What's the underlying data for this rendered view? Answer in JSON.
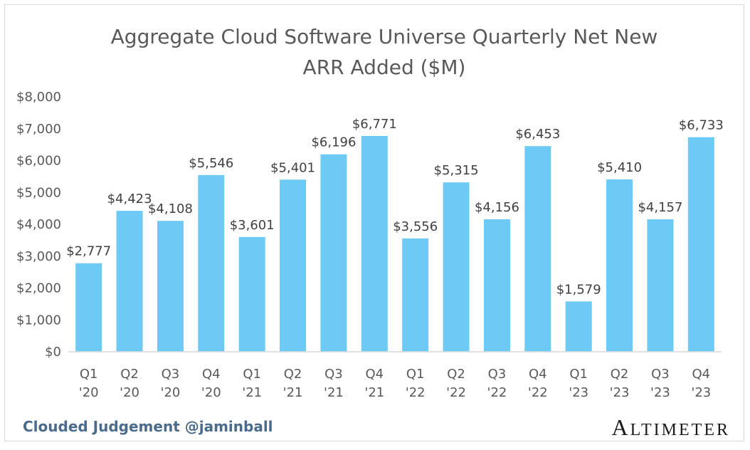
{
  "chart_data": {
    "type": "bar",
    "title": "Aggregate Cloud Software Universe Quarterly Net New ARR Added ($M)",
    "title_lines": [
      "Aggregate Cloud Software Universe Quarterly Net New",
      "ARR Added ($M)"
    ],
    "categories": [
      [
        "Q1",
        "'20"
      ],
      [
        "Q2",
        "'20"
      ],
      [
        "Q3",
        "'20"
      ],
      [
        "Q4",
        "'20"
      ],
      [
        "Q1",
        "'21"
      ],
      [
        "Q2",
        "'21"
      ],
      [
        "Q3",
        "'21"
      ],
      [
        "Q4",
        "'21"
      ],
      [
        "Q1",
        "'22"
      ],
      [
        "Q2",
        "'22"
      ],
      [
        "Q3",
        "'22"
      ],
      [
        "Q4",
        "'22"
      ],
      [
        "Q1",
        "'23"
      ],
      [
        "Q2",
        "'23"
      ],
      [
        "Q3",
        "'23"
      ],
      [
        "Q4",
        "'23"
      ]
    ],
    "values": [
      2777,
      4423,
      4108,
      5546,
      3601,
      5401,
      6196,
      6771,
      3556,
      5315,
      4156,
      6453,
      1579,
      5410,
      4157,
      6733
    ],
    "data_labels": [
      "$2,777",
      "$4,423",
      "$4,108",
      "$5,546",
      "$3,601",
      "$5,401",
      "$6,196",
      "$6,771",
      "$3,556",
      "$5,315",
      "$4,156",
      "$6,453",
      "$1,579",
      "$5,410",
      "$4,157",
      "$6,733"
    ],
    "ylim": [
      0,
      8000
    ],
    "yticks": [
      0,
      1000,
      2000,
      3000,
      4000,
      5000,
      6000,
      7000,
      8000
    ],
    "ytick_labels": [
      "$0",
      "$1,000",
      "$2,000",
      "$3,000",
      "$4,000",
      "$5,000",
      "$6,000",
      "$7,000",
      "$8,000"
    ],
    "xlabel": "",
    "ylabel": "",
    "grid": false,
    "bar_color": "#6ccaf5"
  },
  "footer": {
    "credit": "Clouded Judgement @jaminball",
    "brand": "Altimeter",
    "brand_first": "A",
    "brand_rest": "LTIMETER"
  }
}
